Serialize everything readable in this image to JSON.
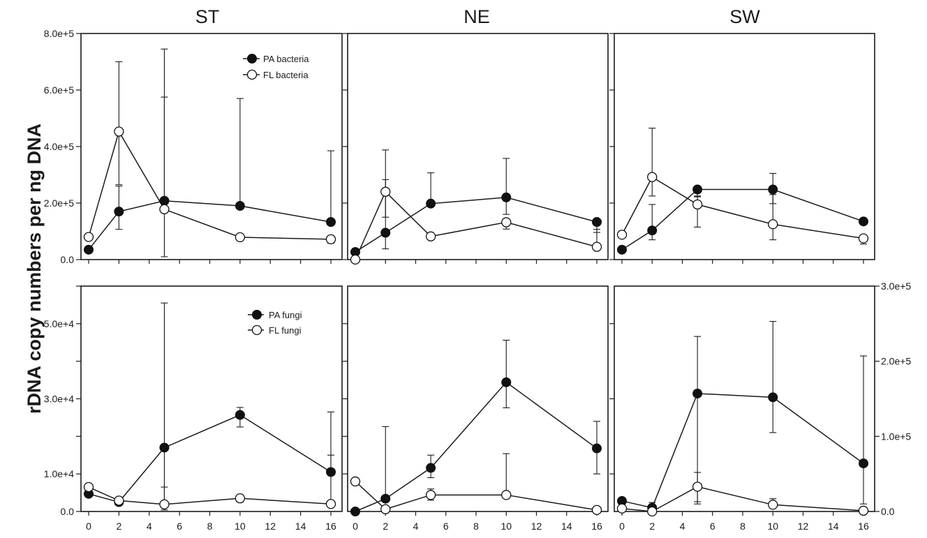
{
  "y_axis_title": "rDNA copy numbers per ng DNA",
  "legends": {
    "bacteria": [
      "PA bacteria",
      "FL bacteria"
    ],
    "fungi": [
      "PA fungi",
      "FL fungi"
    ]
  },
  "chart_data": [
    {
      "type": "line",
      "title": "ST",
      "row": "bacteria",
      "x": [
        0,
        2,
        5,
        10,
        16
      ],
      "ylim": [
        0,
        800000
      ],
      "y_ticks": [
        0,
        200000,
        400000,
        600000,
        800000
      ],
      "y_tick_labels": [
        "0.0",
        "2.0e+5",
        "4.0e+5",
        "6.0e+5",
        "8.0e+5"
      ],
      "y_minor_ticks": [],
      "series": [
        {
          "name": "PA bacteria",
          "marker": "filled",
          "values": [
            35000,
            170000,
            208000,
            190000,
            133000
          ],
          "err_upper": [
            null,
            260000,
            575000,
            570000,
            385000
          ],
          "err_lower": [
            null,
            107000,
            10000,
            null,
            null
          ]
        },
        {
          "name": "FL bacteria",
          "marker": "open",
          "values": [
            80000,
            453000,
            178000,
            79000,
            72000
          ],
          "err_upper": [
            null,
            700000,
            745000,
            null,
            null
          ],
          "err_lower": [
            null,
            265000,
            null,
            null,
            58000
          ]
        }
      ]
    },
    {
      "type": "line",
      "title": "NE",
      "row": "bacteria",
      "x": [
        0,
        2,
        5,
        10,
        16
      ],
      "ylim": [
        0,
        800000
      ],
      "y_ticks": [],
      "y_tick_labels": [],
      "y_minor_ticks": [
        0,
        200000,
        400000,
        600000,
        800000
      ],
      "series": [
        {
          "name": "PA bacteria",
          "marker": "filled",
          "values": [
            27000,
            95000,
            198000,
            220000,
            133000
          ],
          "err_upper": [
            null,
            283000,
            307000,
            358000,
            null
          ],
          "err_lower": [
            null,
            38000,
            null,
            160000,
            96000
          ]
        },
        {
          "name": "FL bacteria",
          "marker": "open",
          "values": [
            0,
            240000,
            82000,
            132000,
            45000
          ],
          "err_upper": [
            null,
            388000,
            null,
            null,
            107000
          ],
          "err_lower": [
            null,
            150000,
            null,
            108000,
            null
          ]
        }
      ]
    },
    {
      "type": "line",
      "title": "SW",
      "row": "bacteria",
      "x": [
        0,
        2,
        5,
        10,
        16
      ],
      "ylim": [
        0,
        800000
      ],
      "y_ticks": [],
      "y_tick_labels": [],
      "y_minor_ticks": [
        0,
        200000,
        400000,
        600000,
        800000
      ],
      "series": [
        {
          "name": "PA bacteria",
          "marker": "filled",
          "values": [
            35000,
            103000,
            248000,
            248000,
            135000
          ],
          "err_upper": [
            null,
            195000,
            null,
            305000,
            null
          ],
          "err_lower": [
            null,
            70000,
            222000,
            198000,
            null
          ]
        },
        {
          "name": "FL bacteria",
          "marker": "open",
          "values": [
            88000,
            292000,
            195000,
            125000,
            75000
          ],
          "err_upper": [
            null,
            465000,
            225000,
            230000,
            null
          ],
          "err_lower": [
            null,
            225000,
            115000,
            70000,
            55000
          ]
        }
      ]
    },
    {
      "type": "line",
      "title": "",
      "row": "fungi",
      "x": [
        0,
        2,
        5,
        10,
        16
      ],
      "ylim": [
        0,
        60000
      ],
      "y_ticks": [
        0,
        10000,
        30000,
        50000
      ],
      "y_tick_labels": [
        "0.0",
        "1.0e+4",
        "3.0e+4",
        "5.0e+4"
      ],
      "y_minor_ticks": [
        20000,
        40000,
        60000
      ],
      "series": [
        {
          "name": "PA fungi",
          "marker": "filled",
          "values": [
            4700,
            2500,
            17000,
            25700,
            10500
          ],
          "err_upper": [
            null,
            null,
            55500,
            27700,
            26500
          ],
          "err_lower": [
            null,
            null,
            400,
            22500,
            null
          ]
        },
        {
          "name": "FL fungi",
          "marker": "open",
          "values": [
            6500,
            2900,
            1900,
            3500,
            2000
          ],
          "err_upper": [
            null,
            null,
            6500,
            null,
            15000
          ],
          "err_lower": [
            null,
            null,
            null,
            2500,
            null
          ]
        }
      ]
    },
    {
      "type": "line",
      "title": "",
      "row": "fungi",
      "x": [
        0,
        2,
        5,
        10,
        16
      ],
      "ylim": [
        0,
        300000
      ],
      "y_ticks": [],
      "y_tick_labels": [],
      "y_minor_ticks": [
        50000,
        100000,
        150000,
        200000,
        250000
      ],
      "series": [
        {
          "name": "PA fungi",
          "marker": "filled",
          "values": [
            0,
            17000,
            58000,
            172000,
            84000
          ],
          "err_upper": [
            null,
            113000,
            75000,
            228000,
            120000
          ],
          "err_lower": [
            null,
            null,
            45000,
            138000,
            50000
          ]
        },
        {
          "name": "FL fungi",
          "marker": "open",
          "values": [
            40000,
            3000,
            22000,
            22000,
            2000
          ],
          "err_upper": [
            null,
            null,
            30000,
            77000,
            null
          ],
          "err_lower": [
            null,
            null,
            15000,
            null,
            null
          ]
        }
      ]
    },
    {
      "type": "line",
      "title": "",
      "row": "fungi",
      "x": [
        0,
        2,
        5,
        10,
        16
      ],
      "ylim": [
        0,
        300000
      ],
      "y_ticks": [
        0,
        100000,
        200000,
        300000
      ],
      "y_tick_labels": [
        "0.0",
        "1.0e+5",
        "2.0e+5",
        "3.0e+5"
      ],
      "y_axis_side": "right",
      "y_minor_ticks": [
        50000,
        150000,
        250000
      ],
      "series": [
        {
          "name": "PA fungi",
          "marker": "filled",
          "values": [
            14000,
            5000,
            157000,
            152000,
            64000
          ],
          "err_upper": [
            null,
            12000,
            233000,
            253000,
            207000
          ],
          "err_lower": [
            null,
            null,
            10000,
            105000,
            10000
          ]
        },
        {
          "name": "FL fungi",
          "marker": "open",
          "values": [
            4000,
            0,
            33000,
            9000,
            1000
          ],
          "err_upper": [
            null,
            null,
            52000,
            17000,
            null
          ],
          "err_lower": [
            null,
            null,
            13000,
            null,
            null
          ]
        }
      ]
    }
  ],
  "x_tick_labels": [
    "0",
    "2",
    "4",
    "6",
    "8",
    "10",
    "12",
    "14",
    "16"
  ]
}
